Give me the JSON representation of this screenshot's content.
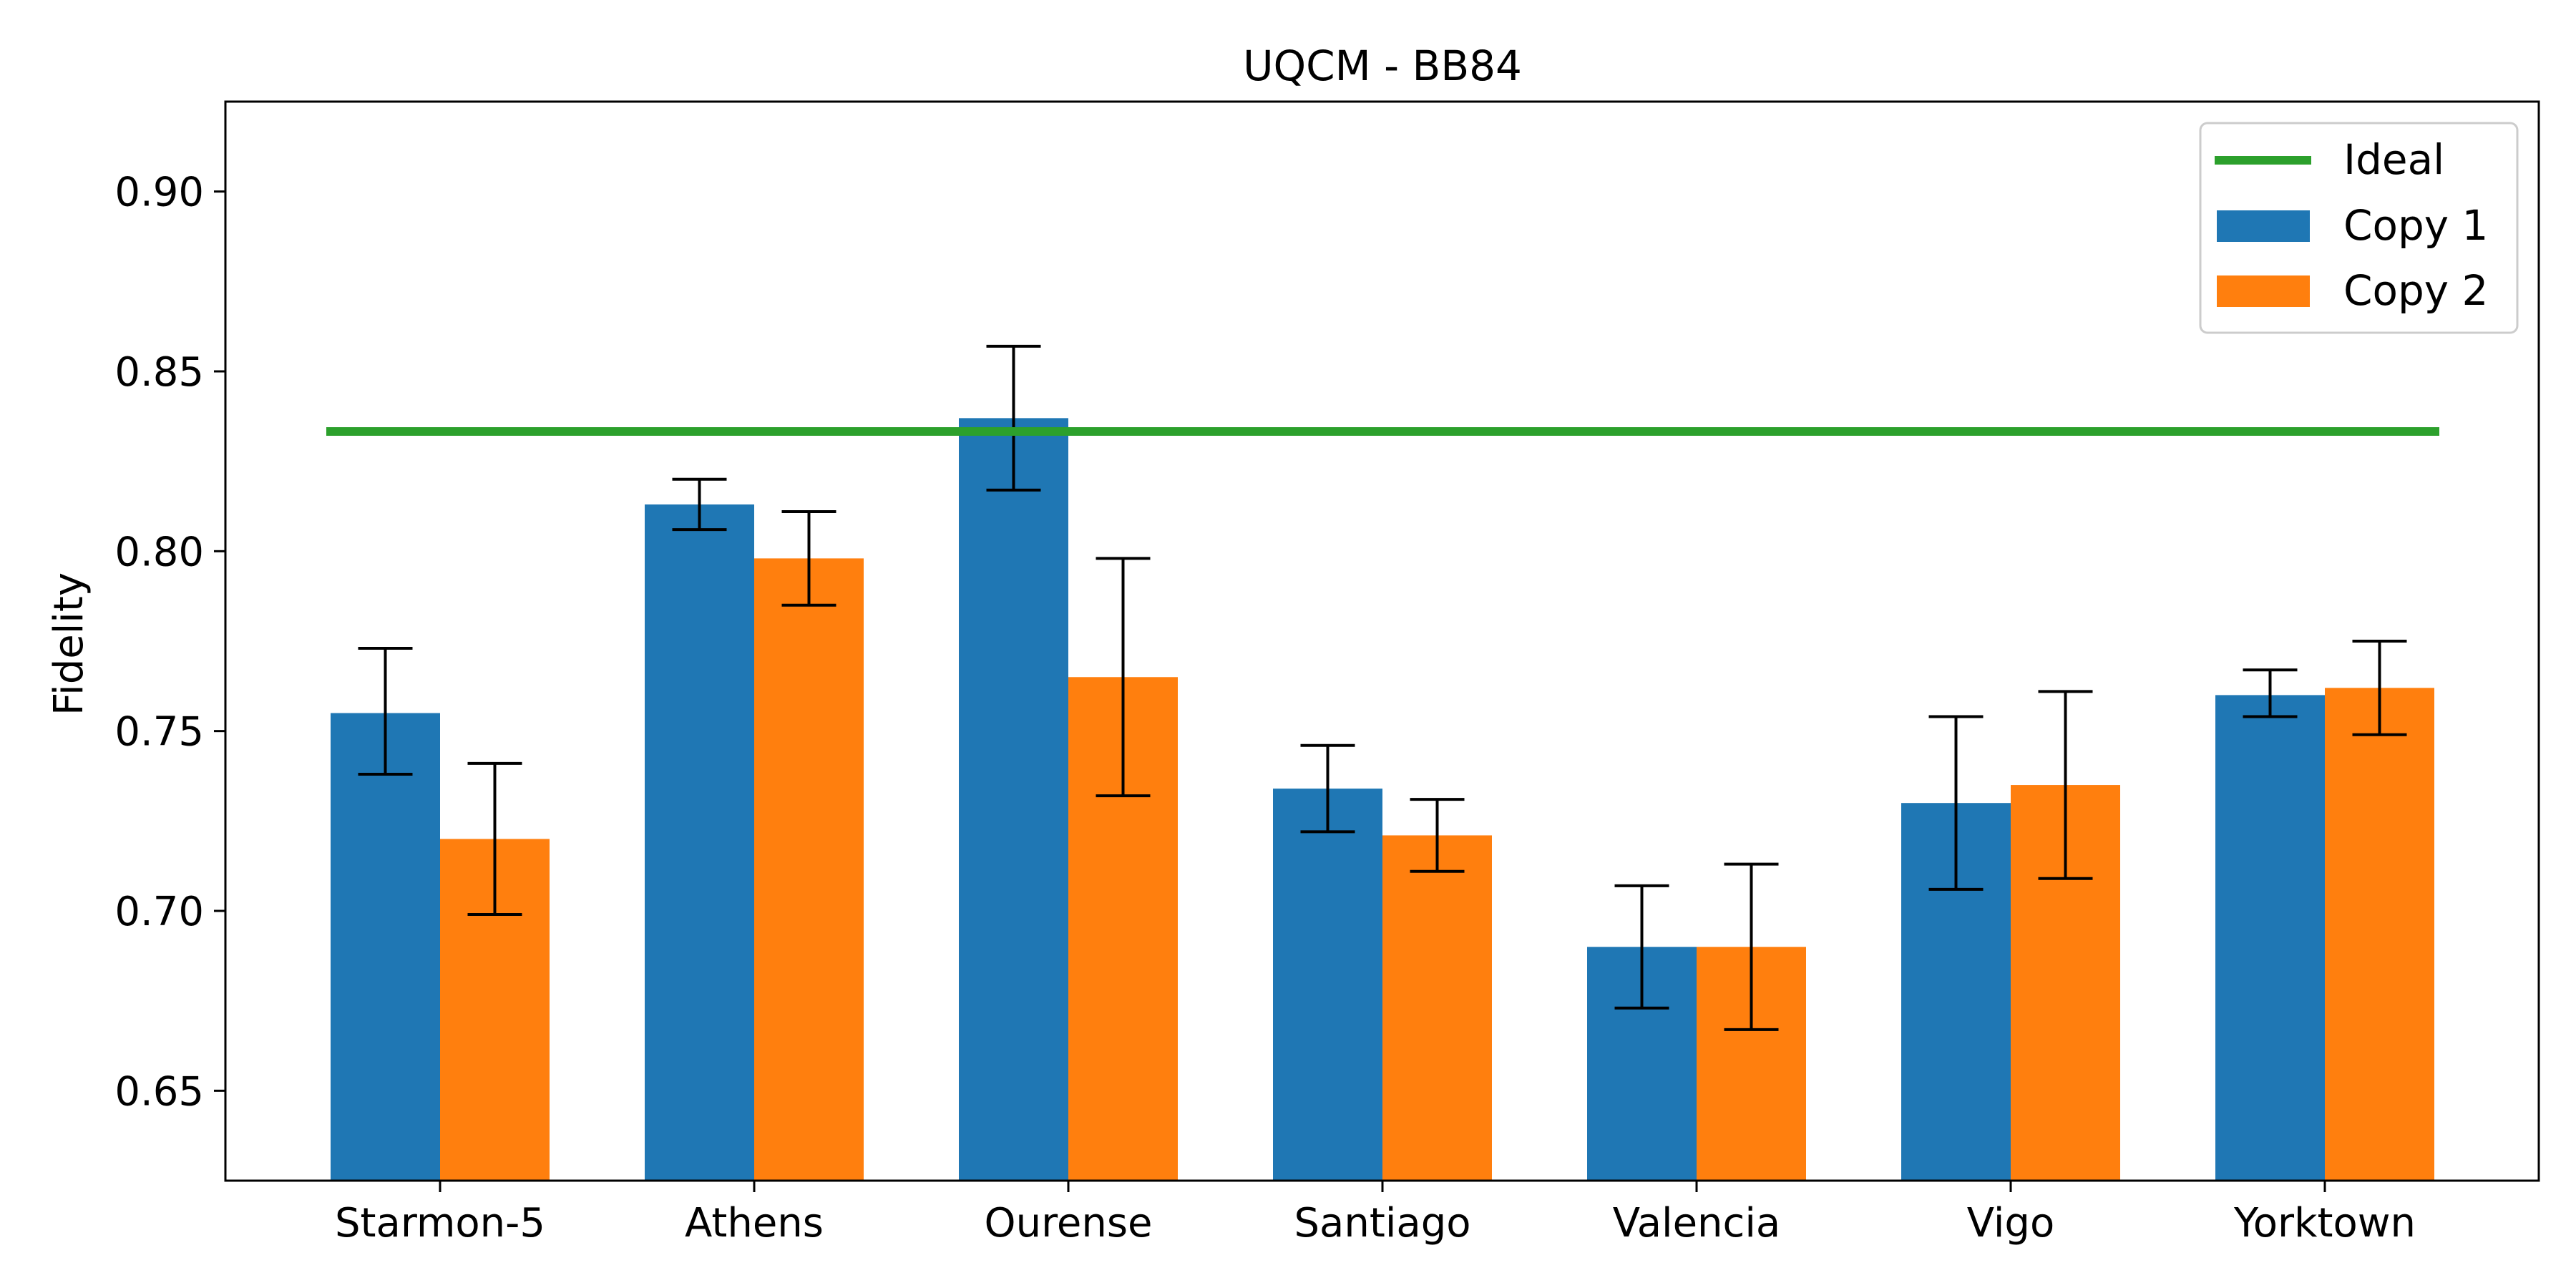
{
  "chart_data": {
    "type": "bar",
    "title": "UQCM - BB84",
    "xlabel": "",
    "ylabel": "Fidelity",
    "ylim": [
      0.625,
      0.925
    ],
    "yticks": [
      0.65,
      0.7,
      0.75,
      0.8,
      0.85,
      0.9
    ],
    "ytick_labels": [
      "0.65",
      "0.70",
      "0.75",
      "0.80",
      "0.85",
      "0.90"
    ],
    "categories": [
      "Starmon-5",
      "Athens",
      "Ourense",
      "Santiago",
      "Valencia",
      "Vigo",
      "Yorktown"
    ],
    "series": [
      {
        "name": "Copy 1",
        "color": "#1f77b4",
        "values": [
          0.755,
          0.813,
          0.837,
          0.734,
          0.69,
          0.73,
          0.76
        ],
        "err_low": [
          0.738,
          0.806,
          0.817,
          0.722,
          0.673,
          0.706,
          0.754
        ],
        "err_high": [
          0.773,
          0.82,
          0.857,
          0.746,
          0.707,
          0.754,
          0.767
        ]
      },
      {
        "name": "Copy 2",
        "color": "#ff7f0e",
        "values": [
          0.72,
          0.798,
          0.765,
          0.721,
          0.69,
          0.735,
          0.762
        ],
        "err_low": [
          0.699,
          0.785,
          0.732,
          0.711,
          0.667,
          0.709,
          0.749
        ],
        "err_high": [
          0.741,
          0.811,
          0.798,
          0.731,
          0.713,
          0.761,
          0.775
        ]
      }
    ],
    "reference_line": {
      "name": "Ideal",
      "value": 0.8333,
      "color": "#2ca02c"
    },
    "legend_position": "top-right",
    "grid": false
  }
}
